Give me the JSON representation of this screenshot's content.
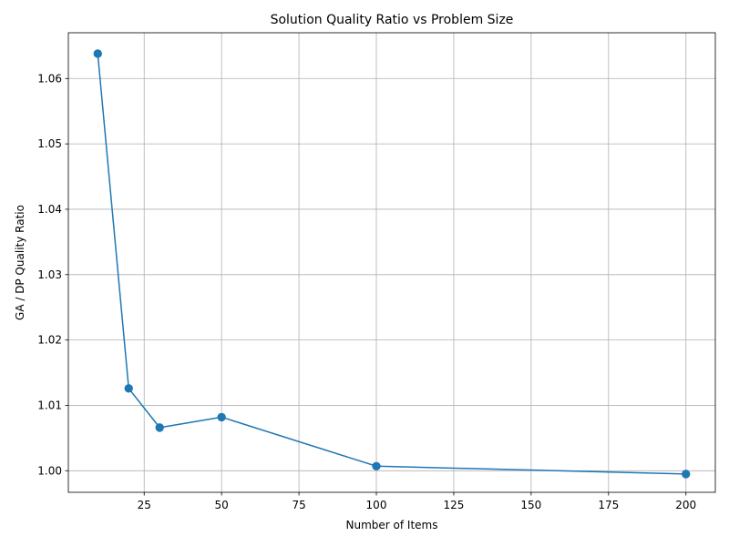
{
  "chart_data": {
    "type": "line",
    "title": "Solution Quality Ratio vs Problem Size",
    "xlabel": "Number of Items",
    "ylabel": "GA / DP Quality Ratio",
    "xlim": [
      0.5,
      209.5
    ],
    "ylim": [
      0.9967,
      1.067
    ],
    "xticks": [
      25,
      50,
      75,
      100,
      125,
      150,
      175,
      200
    ],
    "xtick_labels": [
      "25",
      "50",
      "75",
      "100",
      "125",
      "150",
      "175",
      "200"
    ],
    "yticks": [
      1.0,
      1.01,
      1.02,
      1.03,
      1.04,
      1.05,
      1.06
    ],
    "ytick_labels": [
      "1.00",
      "1.01",
      "1.02",
      "1.03",
      "1.04",
      "1.05",
      "1.06"
    ],
    "grid": true,
    "series": [
      {
        "color": "#1f77b4",
        "marker": "circle",
        "x": [
          10,
          20,
          30,
          50,
          100,
          200
        ],
        "y": [
          1.0638,
          1.0126,
          1.0066,
          1.0082,
          1.0007,
          0.9995
        ]
      }
    ]
  }
}
